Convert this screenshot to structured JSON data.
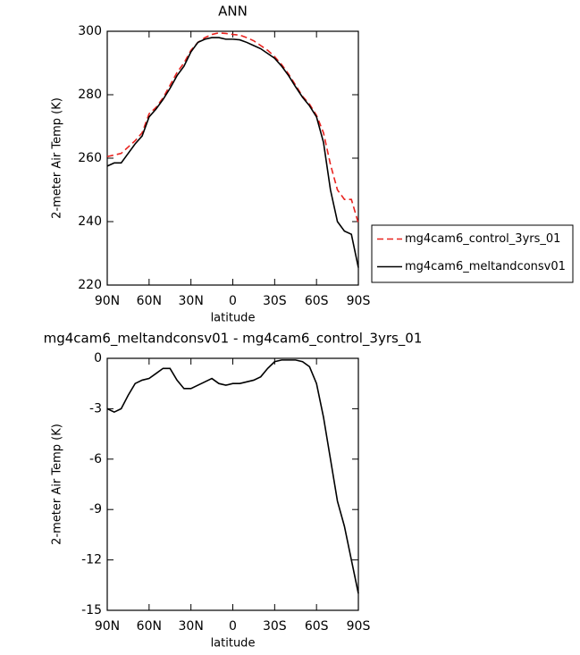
{
  "chart_data": [
    {
      "type": "line",
      "title": "ANN",
      "xlabel": "latitude",
      "ylabel": "2-meter Air Temp (K)",
      "x": [
        90,
        85,
        80,
        75,
        70,
        65,
        60,
        55,
        50,
        45,
        40,
        35,
        30,
        25,
        20,
        15,
        10,
        5,
        0,
        -5,
        -10,
        -15,
        -20,
        -25,
        -30,
        -35,
        -40,
        -45,
        -50,
        -55,
        -60,
        -65,
        -70,
        -75,
        -80,
        -85,
        -90
      ],
      "xlim": [
        90,
        -90
      ],
      "xticks": [
        {
          "value": 90,
          "label": "90N"
        },
        {
          "value": 60,
          "label": "60N"
        },
        {
          "value": 30,
          "label": "30N"
        },
        0,
        {
          "value": -30,
          "label": "30S"
        },
        {
          "value": -60,
          "label": "60S"
        },
        {
          "value": -90,
          "label": "90S"
        }
      ],
      "ylim": [
        220,
        300
      ],
      "yticks": [
        220,
        240,
        260,
        280,
        300
      ],
      "legend": "outside right",
      "series": [
        {
          "name": "mg4cam6_control_3yrs_01",
          "color": "#e8231f",
          "linestyle": "dashed",
          "values": [
            260.5,
            261,
            261.5,
            263.5,
            265.5,
            268,
            274,
            276,
            279,
            283,
            287,
            290,
            294,
            296.5,
            298,
            299,
            299.5,
            299.3,
            299,
            298.8,
            298,
            297,
            295.5,
            294,
            292,
            289.5,
            286.5,
            283,
            279.5,
            277,
            273.5,
            268,
            258,
            250,
            247,
            247,
            239.5
          ]
        },
        {
          "name": "mg4cam6_meltandconsv01",
          "color": "#000000",
          "linestyle": "solid",
          "values": [
            257.5,
            258.5,
            258.5,
            261.5,
            264.5,
            267,
            273,
            275.5,
            278.5,
            282,
            286,
            289,
            293.5,
            296.5,
            297.5,
            298,
            298,
            297.5,
            297.5,
            297.3,
            296.5,
            295.5,
            294.5,
            293,
            291.5,
            289,
            286,
            282.5,
            279.2,
            276.5,
            273,
            265,
            250,
            240,
            237,
            236,
            225.5
          ]
        }
      ]
    },
    {
      "type": "line",
      "title": "mg4cam6_meltandconsv01 - mg4cam6_control_3yrs_01",
      "xlabel": "latitude",
      "ylabel": "2-meter Air Temp (K)",
      "x": [
        90,
        85,
        80,
        75,
        70,
        65,
        60,
        55,
        50,
        45,
        40,
        35,
        30,
        25,
        20,
        15,
        10,
        5,
        0,
        -5,
        -10,
        -15,
        -20,
        -25,
        -30,
        -35,
        -40,
        -45,
        -50,
        -55,
        -60,
        -65,
        -70,
        -75,
        -80,
        -85,
        -90
      ],
      "xlim": [
        90,
        -90
      ],
      "xticks": [
        {
          "value": 90,
          "label": "90N"
        },
        {
          "value": 60,
          "label": "60N"
        },
        {
          "value": 30,
          "label": "30N"
        },
        0,
        {
          "value": -30,
          "label": "30S"
        },
        {
          "value": -60,
          "label": "60S"
        },
        {
          "value": -90,
          "label": "90S"
        }
      ],
      "ylim": [
        -15,
        0
      ],
      "yticks": [
        -15,
        -12,
        -9,
        -6,
        -3,
        0
      ],
      "series": [
        {
          "color": "#000000",
          "linestyle": "solid",
          "values": [
            -3.0,
            -3.2,
            -3.0,
            -2.2,
            -1.5,
            -1.3,
            -1.2,
            -0.9,
            -0.6,
            -0.6,
            -1.3,
            -1.8,
            -1.8,
            -1.6,
            -1.4,
            -1.2,
            -1.5,
            -1.6,
            -1.5,
            -1.5,
            -1.4,
            -1.3,
            -1.1,
            -0.6,
            -0.2,
            -0.1,
            -0.1,
            -0.1,
            -0.2,
            -0.5,
            -1.5,
            -3.5,
            -6,
            -8.5,
            -10,
            -12,
            -14
          ]
        }
      ]
    }
  ]
}
